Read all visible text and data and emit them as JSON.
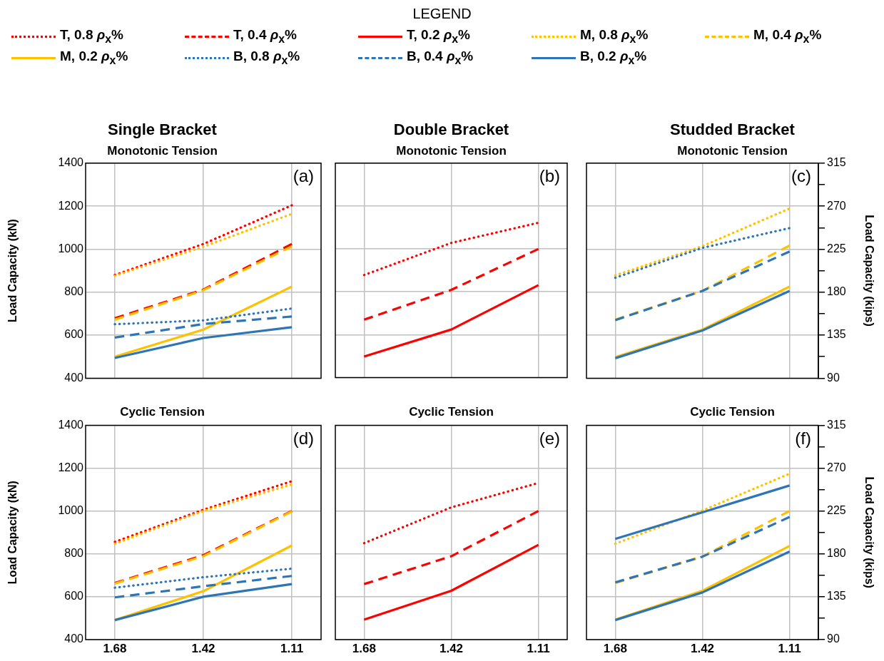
{
  "chart_data": [
    {
      "type": "line",
      "title": "Single Bracket",
      "subtitle": "Monotonic Tension",
      "ylabel": "Load Capacity (kN)",
      "legend_title": "LEGEND",
      "legend": "top",
      "annotations": [
        "(a)"
      ],
      "categories": [
        "1.68",
        "1.42",
        "1.11"
      ],
      "ylim": [
        400,
        1400
      ],
      "yticks": [
        400,
        600,
        800,
        1000,
        1200,
        1400
      ],
      "grid": true,
      "marker": "none",
      "tick_labels": "y",
      "series": [
        {
          "name": "T, 0.8 ρ$_{x}$%",
          "color": "#ff0000",
          "line_style": "dotted",
          "values": [
            880,
            1024,
            1204
          ]
        },
        {
          "name": "T, 0.4 ρ$_{x}$%",
          "color": "#ff0000",
          "line_style": "dashed",
          "values": [
            679,
            812,
            1024
          ]
        },
        {
          "name": "T, 0.2 ρ$_{x}$%",
          "color": "#ff0000",
          "line_style": "solid",
          "values": [
            null,
            null,
            null
          ]
        },
        {
          "name": "M, 0.8 ρ$_{x}$%",
          "color": "#ffc000",
          "line_style": "dotted",
          "values": [
            876,
            1011,
            1164
          ]
        },
        {
          "name": "M, 0.4 ρ$_{x}$%",
          "color": "#ffc000",
          "line_style": "dashed",
          "values": [
            672,
            809,
            1013
          ]
        },
        {
          "name": "M, 0.2 ρ$_{x}$%",
          "color": "#ffc000",
          "line_style": "solid",
          "values": [
            500,
            626,
            826
          ]
        },
        {
          "name": "B, 0.8 ρ$_{x}$%",
          "color": "#2e75b6",
          "line_style": "dotted",
          "values": [
            651,
            669,
            724
          ]
        },
        {
          "name": "B, 0.4 ρ$_{x}$%",
          "color": "#2e75b6",
          "line_style": "dashed",
          "values": [
            589,
            652,
            687
          ]
        },
        {
          "name": "B, 0.2 ρ$_{x}$%",
          "color": "#2e75b6",
          "line_style": "solid",
          "values": [
            494,
            587,
            637
          ]
        }
      ]
    },
    {
      "type": "line",
      "title": "Double Bracket",
      "subtitle": "Monotonic Tension",
      "annotations": [
        "(b)"
      ],
      "categories": [
        "1.68",
        "1.42",
        "1.11"
      ],
      "ylim": [
        400,
        1400
      ],
      "yticks": [
        400,
        600,
        800,
        1000,
        1200,
        1400
      ],
      "grid": true,
      "marker": "none",
      "tick_labels": false,
      "series": [
        {
          "color": "#ff0000",
          "line_style": "dotted",
          "values": [
            878,
            1028,
            1122
          ]
        },
        {
          "color": "#ff0000",
          "line_style": "dashed",
          "values": [
            670,
            809,
            1000
          ]
        },
        {
          "color": "#ff0000",
          "line_style": "solid",
          "values": [
            498,
            624,
            831
          ]
        }
      ]
    },
    {
      "type": "line",
      "title": "Studded Bracket",
      "subtitle": "Monotonic Tension",
      "y2label": "Load Capacity (kips)",
      "annotations": [
        "(c)"
      ],
      "categories": [
        "1.68",
        "1.42",
        "1.11"
      ],
      "ylim": [
        400,
        1400
      ],
      "y2lim": [
        90,
        315
      ],
      "y2ticks": [
        90,
        {
          "value": 112.5,
          "label": null
        },
        135,
        {
          "value": 157.5,
          "label": null
        },
        180,
        {
          "value": 202.5,
          "label": null
        },
        225,
        {
          "value": 247.5,
          "label": null
        },
        270,
        {
          "value": 292.5,
          "label": null
        },
        315
      ],
      "grid": true,
      "marker": "none",
      "tick_labels": "y",
      "series": [
        {
          "color": "#ffc000",
          "line_style": "dotted",
          "values": [
            878,
            1014,
            1189
          ]
        },
        {
          "color": "#ffc000",
          "line_style": "dashed",
          "values": [
            672,
            806,
            1017
          ]
        },
        {
          "color": "#ffc000",
          "line_style": "solid",
          "values": [
            498,
            626,
            826
          ]
        },
        {
          "color": "#2e75b6",
          "line_style": "dotted",
          "values": [
            867,
            1006,
            1098
          ]
        },
        {
          "color": "#2e75b6",
          "line_style": "dashed",
          "values": [
            670,
            806,
            989
          ]
        },
        {
          "color": "#2e75b6",
          "line_style": "solid",
          "values": [
            493,
            622,
            806
          ]
        }
      ]
    },
    {
      "type": "line",
      "title": "Cyclic Tension",
      "ylabel": "Load Capacity (kN)",
      "annotations": [
        "(d)"
      ],
      "categories": [
        "1.68",
        "1.42",
        "1.11"
      ],
      "ylim": [
        400,
        1400
      ],
      "yticks": [
        400,
        600,
        800,
        1000,
        1200,
        1400
      ],
      "grid": true,
      "marker": "none",
      "series": [
        {
          "color": "#ff0000",
          "line_style": "dotted",
          "values": [
            856,
            1006,
            1139
          ]
        },
        {
          "color": "#ff0000",
          "line_style": "dashed",
          "values": [
            664,
            794,
            1000
          ]
        },
        {
          "color": "#ff0000",
          "line_style": "solid",
          "values": [
            null,
            null,
            null
          ]
        },
        {
          "color": "#ffc000",
          "line_style": "dotted",
          "values": [
            847,
            1000,
            1124
          ]
        },
        {
          "color": "#ffc000",
          "line_style": "dashed",
          "values": [
            661,
            789,
            998
          ]
        },
        {
          "color": "#ffc000",
          "line_style": "solid",
          "values": [
            491,
            626,
            839
          ]
        },
        {
          "color": "#2e75b6",
          "line_style": "dotted",
          "values": [
            642,
            691,
            731
          ]
        },
        {
          "color": "#2e75b6",
          "line_style": "dashed",
          "values": [
            597,
            649,
            697
          ]
        },
        {
          "color": "#2e75b6",
          "line_style": "solid",
          "values": [
            491,
            600,
            659
          ]
        }
      ]
    },
    {
      "type": "line",
      "title": "Cyclic Tension",
      "annotations": [
        "(e)"
      ],
      "categories": [
        "1.68",
        "1.42",
        "1.11"
      ],
      "ylim": [
        400,
        1400
      ],
      "yticks": [
        400,
        600,
        800,
        1000,
        1200,
        1400
      ],
      "grid": true,
      "marker": "none",
      "tick_labels": "x",
      "series": [
        {
          "color": "#ff0000",
          "line_style": "dotted",
          "values": [
            850,
            1017,
            1131
          ]
        },
        {
          "color": "#ff0000",
          "line_style": "dashed",
          "values": [
            659,
            789,
            1000
          ]
        },
        {
          "color": "#ff0000",
          "line_style": "solid",
          "values": [
            493,
            628,
            842
          ]
        }
      ]
    },
    {
      "type": "line",
      "title": "Cyclic Tension",
      "y2label": "Load Capacity (kips)",
      "annotations": [
        "(f)"
      ],
      "categories": [
        "1.68",
        "1.42",
        "1.11"
      ],
      "ylim": [
        400,
        1400
      ],
      "y2lim": [
        90,
        315
      ],
      "y2ticks": [
        90,
        {
          "value": 112.5,
          "label": null
        },
        135,
        {
          "value": 157.5,
          "label": null
        },
        180,
        {
          "value": 202.5,
          "label": null
        },
        225,
        {
          "value": 247.5,
          "label": null
        },
        270,
        {
          "value": 292.5,
          "label": null
        },
        315
      ],
      "grid": true,
      "marker": "none",
      "tick_labels": [
        "x",
        "y2"
      ],
      "series": [
        {
          "color": "#ffc000",
          "line_style": "dotted",
          "values": [
            847,
            1002,
            1174
          ]
        },
        {
          "color": "#ffc000",
          "line_style": "dashed",
          "values": [
            664,
            787,
            1000
          ]
        },
        {
          "color": "#ffc000",
          "line_style": "solid",
          "values": [
            493,
            628,
            837
          ]
        },
        {
          "color": "#2e75b6",
          "line_style": "solid",
          "values": [
            870,
            994,
            1119
          ]
        },
        {
          "color": "#2e75b6",
          "line_style": "dashed",
          "values": [
            667,
            787,
            972
          ]
        },
        {
          "color": "#2e75b6",
          "line_style": "solid",
          "values": [
            491,
            620,
            811
          ]
        }
      ]
    }
  ]
}
